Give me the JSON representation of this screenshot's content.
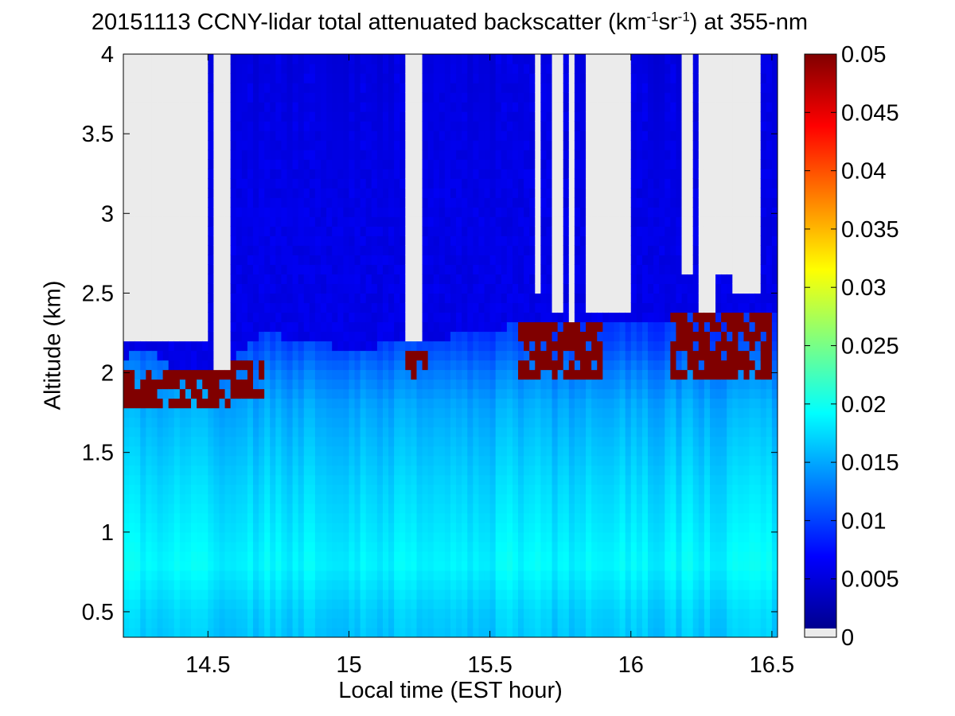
{
  "chart_data": {
    "type": "heatmap",
    "title_parts": {
      "before_sup1": "20151113 CCNY-lidar total attenuated backscatter (km",
      "sup1": "-1",
      "middle": "sr",
      "sup2": "-1",
      "after_sup2": ") at 355-nm"
    },
    "xlabel": "Local time (EST hour)",
    "ylabel": "Altitude (km)",
    "xlim": [
      14.2,
      16.52
    ],
    "ylim": [
      0.34,
      4.0
    ],
    "x_ticks": [
      14.5,
      15,
      15.5,
      16,
      16.5
    ],
    "x_tick_labels": [
      "14.5",
      "15",
      "15.5",
      "16",
      "16.5"
    ],
    "y_ticks": [
      0.5,
      1,
      1.5,
      2,
      2.5,
      3,
      3.5,
      4
    ],
    "y_tick_labels": [
      "0.5",
      "1",
      "1.5",
      "2",
      "2.5",
      "3",
      "3.5",
      "4"
    ],
    "colorbar": {
      "range": [
        0,
        0.05
      ],
      "ticks": [
        0,
        0.005,
        0.01,
        0.015,
        0.02,
        0.025,
        0.03,
        0.035,
        0.04,
        0.045,
        0.05
      ],
      "tick_labels": [
        "0",
        "0.005",
        "0.01",
        "0.015",
        "0.02",
        "0.025",
        "0.03",
        "0.035",
        "0.04",
        "0.045",
        "0.05"
      ],
      "colormap": "jet",
      "missing_color": "#ebebeb"
    },
    "colors": {
      "no_data": "#ebebeb",
      "saturated": "#800000",
      "frame": "#000000"
    },
    "boundary_layer_top_km": [
      [
        14.2,
        1.95
      ],
      [
        14.3,
        2.0
      ],
      [
        14.4,
        1.85
      ],
      [
        14.5,
        1.87
      ],
      [
        14.6,
        1.95
      ],
      [
        14.7,
        2.1
      ],
      [
        15.0,
        2.0
      ],
      [
        15.25,
        2.05
      ],
      [
        15.6,
        2.15
      ],
      [
        15.8,
        2.15
      ],
      [
        16.2,
        2.2
      ],
      [
        16.5,
        2.25
      ]
    ],
    "aerosol_backscatter_profile_km": [
      [
        0.35,
        0.016
      ],
      [
        0.5,
        0.0165
      ],
      [
        0.8,
        0.0185
      ],
      [
        1.0,
        0.0178
      ],
      [
        1.3,
        0.0168
      ],
      [
        1.6,
        0.0155
      ],
      [
        1.8,
        0.0145
      ],
      [
        2.0,
        0.0125
      ],
      [
        2.2,
        0.0095
      ],
      [
        2.6,
        0.007
      ],
      [
        3.2,
        0.0058
      ],
      [
        4.0,
        0.005
      ]
    ],
    "cloud_base_segments": [
      {
        "t0": 14.2,
        "t1": 14.58,
        "base_km": 1.8,
        "top_km": 2.05
      },
      {
        "t0": 14.58,
        "t1": 14.7,
        "base_km": 1.85,
        "top_km": 2.1
      },
      {
        "t0": 15.2,
        "t1": 15.27,
        "base_km": 1.95,
        "top_km": 2.15
      },
      {
        "t0": 15.6,
        "t1": 15.9,
        "base_km": 1.95,
        "top_km": 2.3
      },
      {
        "t0": 16.15,
        "t1": 16.5,
        "base_km": 1.98,
        "top_km": 2.35
      }
    ],
    "no_data_regions": [
      {
        "t0": 14.2,
        "t1": 14.5,
        "above_km": 2.2
      },
      {
        "t0": 14.53,
        "t1": 14.58,
        "above_km": 2.05
      },
      {
        "t0": 15.2,
        "t1": 15.25,
        "above_km": 2.2
      },
      {
        "t0": 15.65,
        "t1": 15.68,
        "above_km": 2.5
      },
      {
        "t0": 15.72,
        "t1": 15.75,
        "above_km": 2.4
      },
      {
        "t0": 15.78,
        "t1": 15.8,
        "above_km": 2.3
      },
      {
        "t0": 15.84,
        "t1": 15.99,
        "above_km": 2.4
      },
      {
        "t0": 16.18,
        "t1": 16.22,
        "above_km": 2.6
      },
      {
        "t0": 16.25,
        "t1": 16.3,
        "above_km": 2.4
      },
      {
        "t0": 16.31,
        "t1": 16.35,
        "above_km": 2.6
      },
      {
        "t0": 16.37,
        "t1": 16.45,
        "above_km": 2.5
      }
    ]
  }
}
